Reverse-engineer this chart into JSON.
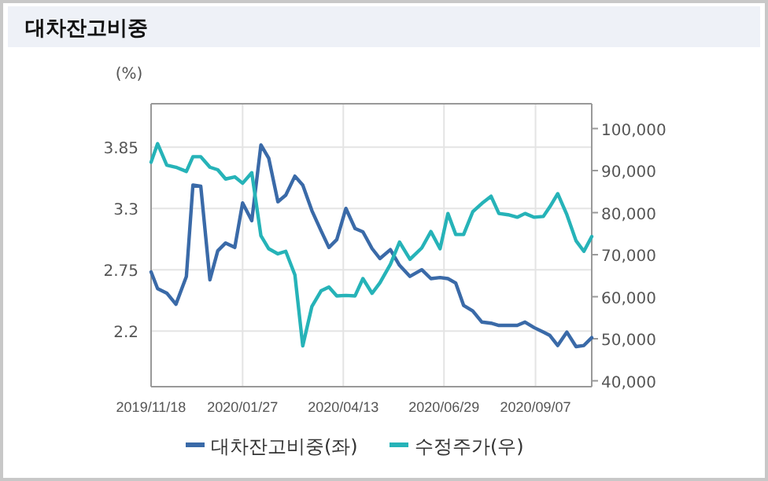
{
  "chart_data": {
    "type": "line",
    "title": "대차잔고비중",
    "ylabel": "(%)",
    "x": [
      "2019-11-18",
      "2019-11-23",
      "2019-11-30",
      "2019-12-07",
      "2019-12-15",
      "2019-12-20",
      "2019-12-26",
      "2020-01-02",
      "2020-01-08",
      "2020-01-14",
      "2020-01-21",
      "2020-01-27",
      "2020-02-03",
      "2020-02-10",
      "2020-02-16",
      "2020-02-23",
      "2020-02-29",
      "2020-03-07",
      "2020-03-13",
      "2020-03-20",
      "2020-03-27",
      "2020-04-02",
      "2020-04-08",
      "2020-04-15",
      "2020-04-22",
      "2020-04-28",
      "2020-05-05",
      "2020-05-11",
      "2020-05-19",
      "2020-05-26",
      "2020-06-03",
      "2020-06-12",
      "2020-06-19",
      "2020-06-26",
      "2020-07-02",
      "2020-07-08",
      "2020-07-14",
      "2020-07-21",
      "2020-07-28",
      "2020-08-04",
      "2020-08-10",
      "2020-08-17",
      "2020-08-24",
      "2020-08-30",
      "2020-09-06",
      "2020-09-13",
      "2020-09-18",
      "2020-09-24",
      "2020-10-01",
      "2020-10-08",
      "2020-10-14",
      "2020-10-20"
    ],
    "series": [
      {
        "name": "대차잔고비중(좌)",
        "color": "#3a6aa8",
        "values": [
          2.73,
          2.58,
          2.54,
          2.44,
          2.69,
          3.51,
          3.5,
          2.66,
          2.92,
          2.99,
          2.95,
          3.35,
          3.19,
          3.87,
          3.75,
          3.36,
          3.42,
          3.59,
          3.51,
          3.28,
          3.1,
          2.95,
          3.02,
          3.3,
          3.12,
          3.09,
          2.94,
          2.85,
          2.93,
          2.79,
          2.69,
          2.75,
          2.67,
          2.68,
          2.67,
          2.63,
          2.43,
          2.38,
          2.28,
          2.27,
          2.25,
          2.25,
          2.25,
          2.28,
          2.23,
          2.19,
          2.16,
          2.07,
          2.19,
          2.06,
          2.07,
          2.14
        ]
      },
      {
        "name": "수정주가(우)",
        "color": "#26b3b8",
        "axis": "y2",
        "values": [
          92000,
          96400,
          91300,
          90800,
          89800,
          93300,
          93300,
          90800,
          90200,
          88000,
          88500,
          87000,
          89500,
          74500,
          71400,
          70200,
          70800,
          65200,
          48300,
          57700,
          61400,
          62300,
          60200,
          60300,
          60200,
          64300,
          60800,
          63300,
          67700,
          73000,
          68900,
          71600,
          75500,
          71400,
          79800,
          74800,
          74800,
          80200,
          82200,
          83900,
          79800,
          79500,
          78900,
          79800,
          78900,
          79100,
          81400,
          84500,
          79500,
          73300,
          70800,
          74300
        ]
      }
    ],
    "xlim": [
      "2019-11-18",
      "2020-10-20"
    ],
    "xticks": [
      {
        "value": "2019-11-18",
        "label": "2019/11/18"
      },
      {
        "value": "2020-01-27",
        "label": "2020/01/27"
      },
      {
        "value": "2020-04-13",
        "label": "2020/04/13"
      },
      {
        "value": "2020-06-29",
        "label": "2020/06/29"
      },
      {
        "value": "2020-09-07",
        "label": "2020/09/07"
      }
    ],
    "ylim": [
      1.7,
      4.24
    ],
    "yticks": [
      2.2,
      2.75,
      3.3,
      3.85
    ],
    "y2lim": [
      38600,
      105900
    ],
    "y2ticks": [
      {
        "value": 40000,
        "label": "40,000"
      },
      {
        "value": 50000,
        "label": "50,000"
      },
      {
        "value": 60000,
        "label": "60,000"
      },
      {
        "value": 70000,
        "label": "70,000"
      },
      {
        "value": 80000,
        "label": "80,000"
      },
      {
        "value": 90000,
        "label": "90,000"
      },
      {
        "value": 100000,
        "label": "100,000"
      }
    ],
    "grid": true,
    "legend": "bottom",
    "marker": "none",
    "line_style": "solid"
  }
}
